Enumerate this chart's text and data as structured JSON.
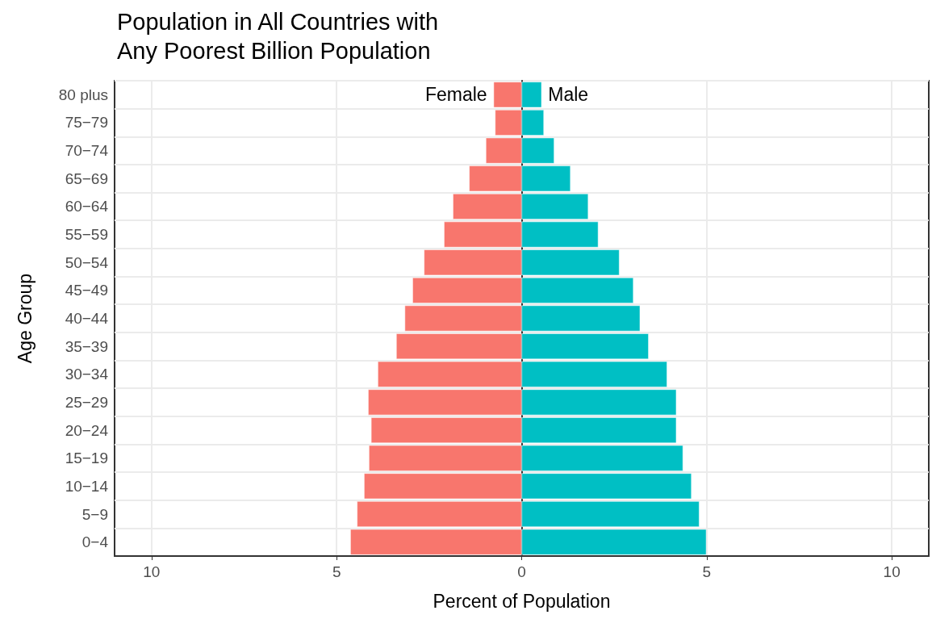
{
  "chart_data": {
    "type": "bar",
    "orientation": "horizontal",
    "stacked": true,
    "title": "Population in All Countries with\nAny Poorest Billion Population",
    "xlabel": "Percent of Population",
    "ylabel": "Age Group",
    "categories": [
      "80 plus",
      "75−79",
      "70−74",
      "65−69",
      "60−64",
      "55−59",
      "50−54",
      "45−49",
      "40−44",
      "35−39",
      "30−34",
      "25−29",
      "20−24",
      "15−19",
      "10−14",
      "5−9",
      "0−4"
    ],
    "series": [
      {
        "name": "Female",
        "color": "#f8766d",
        "values": [
          -0.76,
          -0.72,
          -0.97,
          -1.42,
          -1.86,
          -2.1,
          -2.64,
          -2.95,
          -3.16,
          -3.39,
          -3.89,
          -4.15,
          -4.07,
          -4.13,
          -4.26,
          -4.45,
          -4.63
        ]
      },
      {
        "name": "Male",
        "color": "#00bfc4",
        "values": [
          0.54,
          0.6,
          0.88,
          1.32,
          1.8,
          2.07,
          2.64,
          3.02,
          3.2,
          3.43,
          3.93,
          4.18,
          4.18,
          4.36,
          4.59,
          4.8,
          4.99
        ]
      }
    ],
    "xlim": [
      -11,
      11
    ],
    "xticks": [
      {
        "value": -10,
        "label": "10"
      },
      {
        "value": -5,
        "label": "5"
      },
      0,
      {
        "value": 5,
        "label": "5"
      },
      {
        "value": 10,
        "label": "10"
      }
    ],
    "grid": true,
    "legend": false
  }
}
